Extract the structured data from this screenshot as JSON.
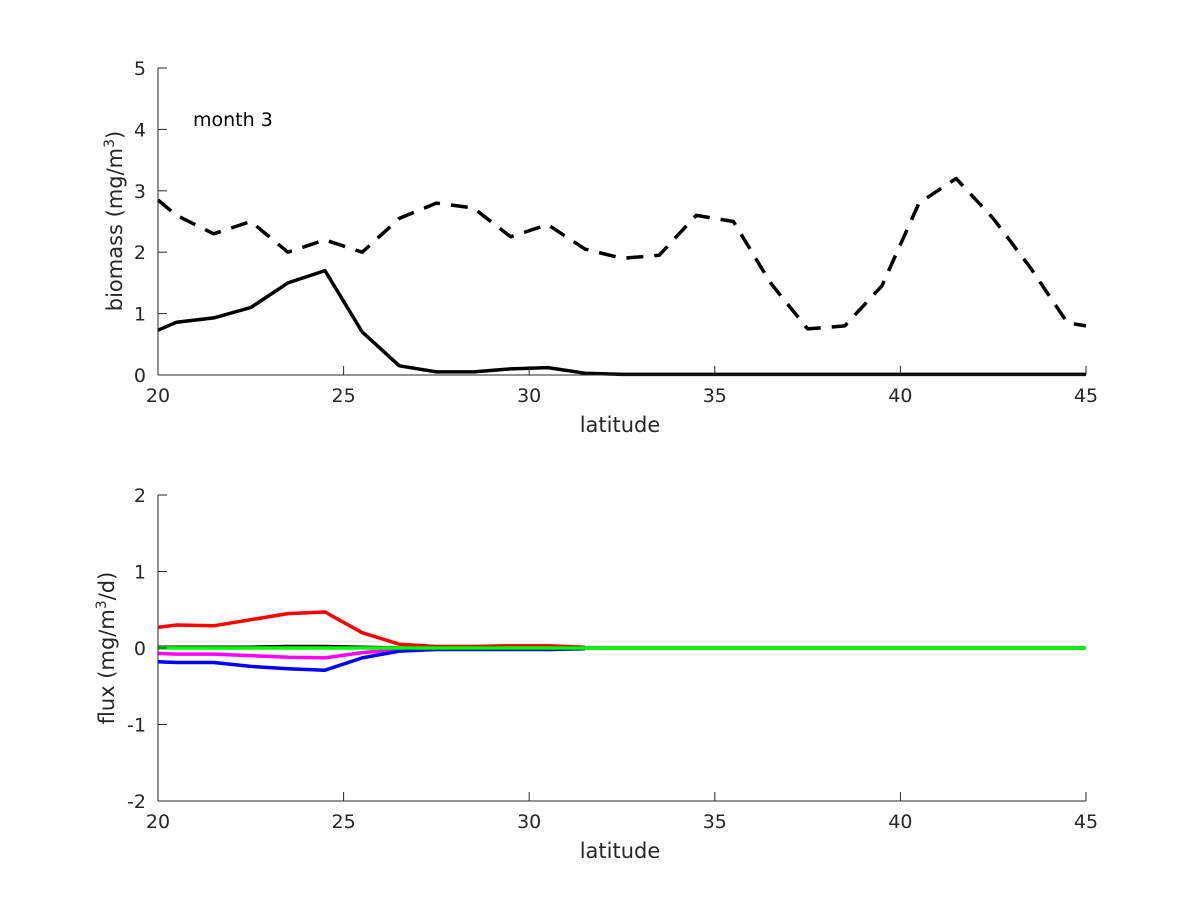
{
  "chart_data": [
    {
      "type": "line",
      "annotation": "month 3",
      "xlabel": "latitude",
      "ylabel_parts": {
        "before": "biomass (mg/m",
        "sup": "3",
        "after": ")"
      },
      "xlim": [
        20,
        45
      ],
      "ylim": [
        0,
        5
      ],
      "xticks": [
        20,
        25,
        30,
        35,
        40,
        45
      ],
      "yticks": [
        0,
        1,
        2,
        3,
        4,
        5
      ],
      "grid": false,
      "series": [
        {
          "style": "solid",
          "color": "#000000",
          "x": [
            20,
            20.5,
            21.5,
            22.5,
            23.5,
            24.5,
            25.5,
            26.5,
            27.5,
            28.5,
            29.5,
            30.5,
            31.5,
            32.5,
            33.5,
            34.5,
            35.5,
            36.5,
            37.5,
            38.5,
            39.5,
            40.5,
            41.5,
            42.5,
            43.5,
            44.5,
            45
          ],
          "y": [
            0.73,
            0.86,
            0.93,
            1.1,
            1.5,
            1.7,
            0.7,
            0.15,
            0.05,
            0.05,
            0.1,
            0.12,
            0.03,
            0.01,
            0.01,
            0.01,
            0.01,
            0.01,
            0.01,
            0.01,
            0.01,
            0.01,
            0.01,
            0.01,
            0.01,
            0.01,
            0.01
          ]
        },
        {
          "style": "dashed",
          "color": "#000000",
          "x": [
            20,
            20.5,
            21.5,
            22.5,
            23.5,
            24.5,
            25.5,
            26.5,
            27.5,
            28.5,
            29.5,
            30.5,
            31.5,
            32.5,
            33.5,
            34.5,
            35.5,
            36.5,
            37.5,
            38.5,
            39.5,
            40.5,
            41.5,
            42.5,
            43.5,
            44.5,
            45
          ],
          "y": [
            2.85,
            2.6,
            2.3,
            2.5,
            2.0,
            2.2,
            2.0,
            2.55,
            2.8,
            2.72,
            2.25,
            2.45,
            2.05,
            1.9,
            1.95,
            2.6,
            2.5,
            1.5,
            0.75,
            0.8,
            1.45,
            2.8,
            3.2,
            2.55,
            1.75,
            0.85,
            0.8
          ]
        }
      ]
    },
    {
      "type": "line",
      "xlabel": "latitude",
      "ylabel_parts": {
        "before": "flux (mg/m",
        "sup": "3",
        "after": "/d)"
      },
      "xlim": [
        20,
        45
      ],
      "ylim": [
        -2,
        2
      ],
      "xticks": [
        20,
        25,
        30,
        35,
        40,
        45
      ],
      "yticks": [
        -2,
        -1,
        0,
        1,
        2
      ],
      "grid": false,
      "series": [
        {
          "style": "solid",
          "color": "#ff0000",
          "x": [
            20,
            20.5,
            21.5,
            22.5,
            23.5,
            24.5,
            25.5,
            26.5,
            27.5,
            28.5,
            29.5,
            30.5,
            31.5
          ],
          "y": [
            0.27,
            0.3,
            0.29,
            0.37,
            0.45,
            0.47,
            0.2,
            0.05,
            0.02,
            0.02,
            0.03,
            0.03,
            0.01
          ]
        },
        {
          "style": "solid",
          "color": "#ff00ff",
          "x": [
            20,
            20.5,
            21.5,
            22.5,
            23.5,
            24.5,
            25.5,
            26.5,
            27.5,
            28.5
          ],
          "y": [
            -0.07,
            -0.08,
            -0.08,
            -0.1,
            -0.12,
            -0.13,
            -0.06,
            -0.02,
            -0.01,
            -0.01
          ]
        },
        {
          "style": "solid",
          "color": "#0000ff",
          "x": [
            20,
            20.5,
            21.5,
            22.5,
            23.5,
            24.5,
            25.5,
            26.5,
            27.5,
            28.5,
            29.5,
            30.5,
            31.5
          ],
          "y": [
            -0.18,
            -0.19,
            -0.19,
            -0.24,
            -0.27,
            -0.29,
            -0.13,
            -0.04,
            -0.02,
            -0.02,
            -0.02,
            -0.02,
            -0.01
          ]
        },
        {
          "style": "solid",
          "color": "#000000",
          "x": [
            20,
            20.5,
            21.5,
            22.5,
            23.5,
            24.5,
            25.5,
            26.5,
            27.5,
            45
          ],
          "y": [
            0.01,
            0.01,
            0.01,
            0.01,
            0.02,
            0.02,
            0.01,
            0.0,
            0.0,
            0.0
          ]
        },
        {
          "style": "solid",
          "color": "#00ff00",
          "x": [
            20,
            25,
            30,
            35,
            40,
            45
          ],
          "y": [
            0.0,
            0.0,
            0.0,
            0.0,
            0.0,
            0.0
          ]
        }
      ]
    }
  ]
}
